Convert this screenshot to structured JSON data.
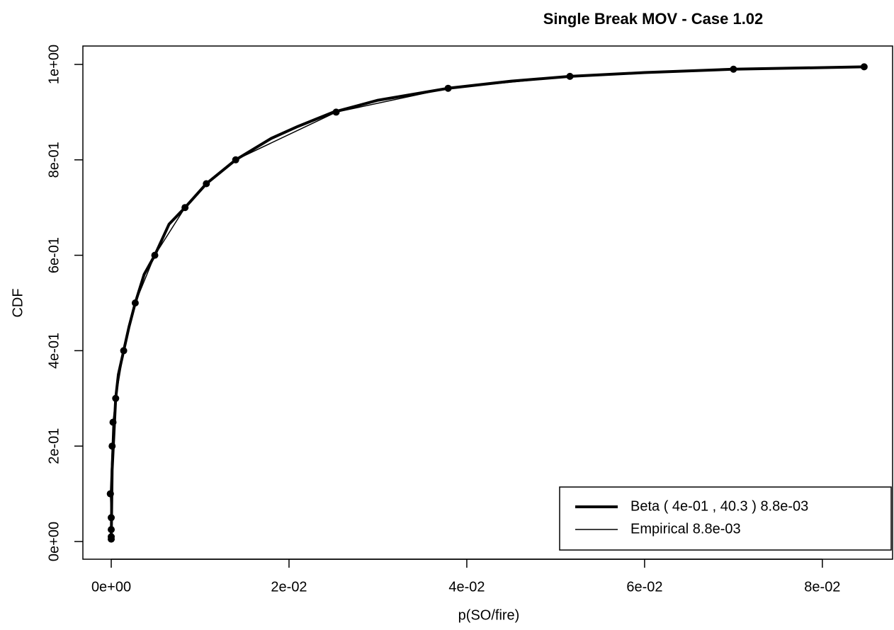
{
  "chart_data": {
    "type": "line",
    "title": "Single Break MOV - Case 1.02",
    "xlabel": "p(SO/fire)",
    "ylabel": "CDF",
    "xlim": [
      -0.00319,
      0.0879
    ],
    "ylim": [
      -0.0371,
      1.0386
    ],
    "xticks": [
      {
        "value": 0,
        "label": "0e+00"
      },
      {
        "value": 0.02,
        "label": "2e-02"
      },
      {
        "value": 0.04,
        "label": "4e-02"
      },
      {
        "value": 0.06,
        "label": "6e-02"
      },
      {
        "value": 0.08,
        "label": "8e-02"
      }
    ],
    "yticks": [
      {
        "value": 0,
        "label": "0e+00"
      },
      {
        "value": 0.2,
        "label": "2e-01"
      },
      {
        "value": 0.4,
        "label": "4e-01"
      },
      {
        "value": 0.6,
        "label": "6e-01"
      },
      {
        "value": 0.8,
        "label": "8e-01"
      },
      {
        "value": 1,
        "label": "1e+00"
      }
    ],
    "legend": "bottom-right",
    "series": [
      {
        "name": "Beta ( 4e-01 , 40.3 ) 8.8e-03",
        "color": "#000000",
        "line_width": 4,
        "points": false,
        "x": [
          0,
          0.0001,
          0.0005,
          0.0008,
          0.0014,
          0.002,
          0.0027,
          0.0037,
          0.0049,
          0.0065,
          0.0083,
          0.0107,
          0.014,
          0.018,
          0.021,
          0.025,
          0.03,
          0.0379,
          0.045,
          0.0516,
          0.06,
          0.07,
          0.0847
        ],
        "values": [
          0,
          0.15,
          0.3,
          0.35,
          0.4,
          0.45,
          0.5,
          0.56,
          0.6,
          0.665,
          0.7,
          0.75,
          0.8,
          0.845,
          0.87,
          0.9,
          0.925,
          0.95,
          0.965,
          0.975,
          0.983,
          0.99,
          0.995
        ]
      },
      {
        "name": "Empirical 8.8e-03",
        "color": "#000000",
        "line_width": 1.5,
        "points": true,
        "x": [
          0,
          0,
          0,
          0,
          -0.0001,
          -0.0001,
          0.0001,
          0.0002,
          0.0005,
          0.0014,
          0.0027,
          0.0049,
          0.0083,
          0.0107,
          0.014,
          0.0253,
          0.0379,
          0.0516,
          0.07,
          0.0847
        ],
        "values": [
          0.005,
          0.01,
          0.025,
          0.05,
          0.1,
          0.1,
          0.2,
          0.25,
          0.3,
          0.4,
          0.5,
          0.6,
          0.7,
          0.75,
          0.8,
          0.9,
          0.95,
          0.975,
          0.99,
          0.995
        ]
      }
    ]
  }
}
